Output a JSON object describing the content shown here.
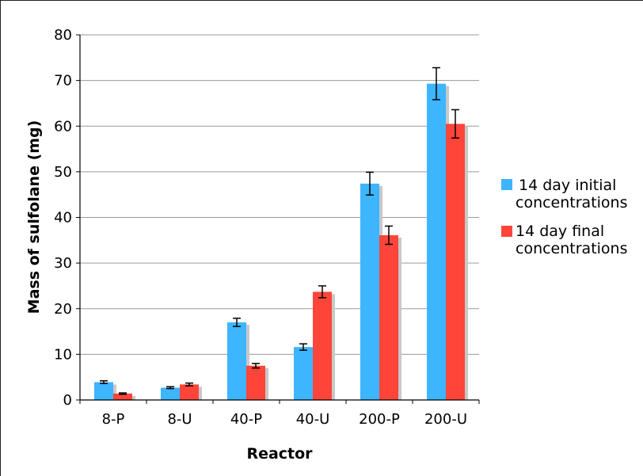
{
  "chart_data": {
    "type": "bar",
    "title": "",
    "xlabel": "Reactor",
    "ylabel": "Mass of sulfolane (mg)",
    "categories": [
      "8-P",
      "8-U",
      "40-P",
      "40-U",
      "200-P",
      "200-U"
    ],
    "ylim": [
      0,
      80
    ],
    "yticks": [
      "0",
      "10",
      "20",
      "30",
      "40",
      "50",
      "60",
      "70",
      "80"
    ],
    "grid": true,
    "legend_position": "right",
    "series": [
      {
        "name_lines": [
          "14 day initial",
          "concentrations"
        ],
        "color": "#3DB5FF",
        "values": [
          3.9,
          2.7,
          17.0,
          11.6,
          47.4,
          69.3
        ],
        "errors": [
          0.3,
          0.2,
          0.9,
          0.7,
          2.5,
          3.5
        ]
      },
      {
        "name_lines": [
          "14 day final",
          "concentrations"
        ],
        "color": "#FF453A",
        "values": [
          1.4,
          3.4,
          7.5,
          23.7,
          36.1,
          60.5
        ],
        "errors": [
          0.15,
          0.3,
          0.5,
          1.3,
          2.0,
          3.1
        ]
      }
    ]
  }
}
